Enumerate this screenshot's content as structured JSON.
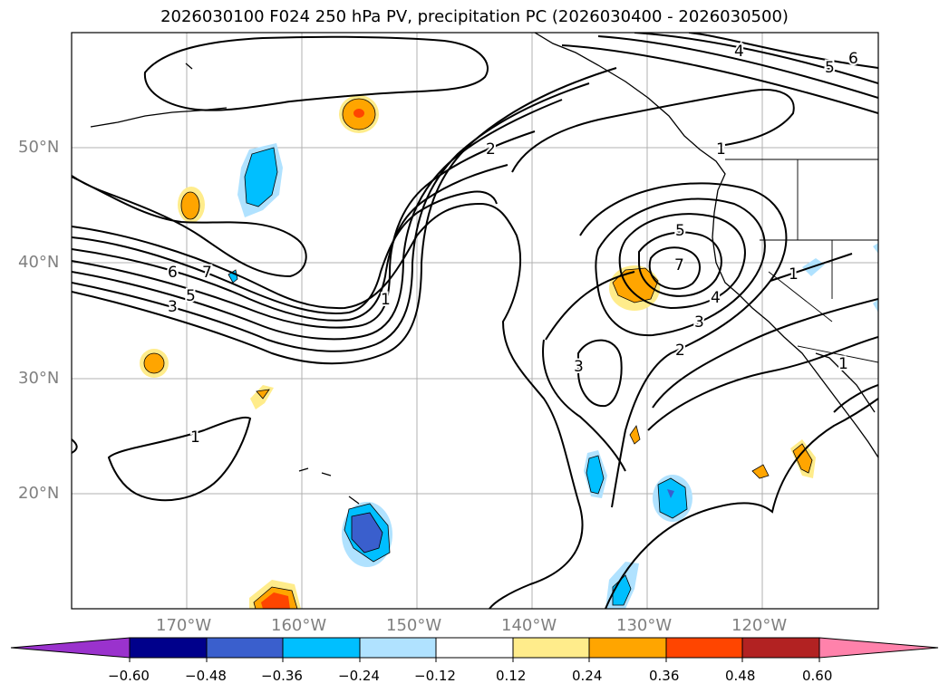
{
  "title": "2026030100 F024 250 hPa PV, precipitation PC (2026030400 - 2026030500)",
  "latitude_labels": [
    "50°N",
    "40°N",
    "30°N",
    "20°N"
  ],
  "longitude_labels": [
    "170°W",
    "160°W",
    "150°W",
    "140°W",
    "130°W",
    "120°W"
  ],
  "contour_labels": [
    "1",
    "1",
    "1",
    "1",
    "1",
    "2",
    "2",
    "3",
    "3",
    "3",
    "4",
    "4",
    "5",
    "5",
    "5",
    "6",
    "6",
    "7",
    "7"
  ],
  "colorbar": {
    "ticks": [
      "−0.60",
      "−0.48",
      "−0.36",
      "−0.24",
      "−0.12",
      "0.12",
      "0.24",
      "0.36",
      "0.48",
      "0.60"
    ],
    "colors": [
      "#9a32cd",
      "#00008b",
      "#3a5fcd",
      "#00bfff",
      "#b0e2ff",
      "#ffffff",
      "#ffec8b",
      "#ffa500",
      "#ff4500",
      "#b22222",
      "#ff82ab"
    ]
  }
}
